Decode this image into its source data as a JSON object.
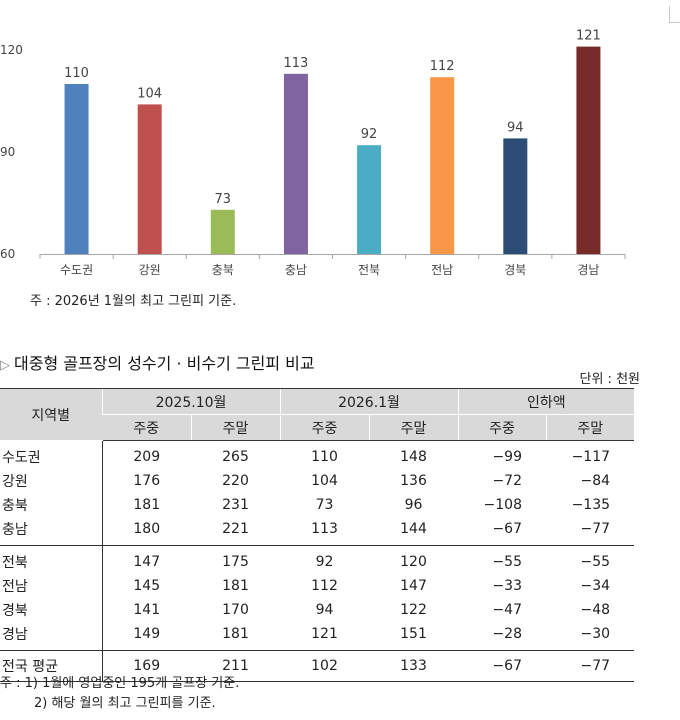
{
  "chart_data": {
    "type": "bar",
    "categories": [
      "수도권",
      "강원",
      "충북",
      "충남",
      "전북",
      "전남",
      "경북",
      "경남"
    ],
    "values": [
      110,
      104,
      73,
      113,
      92,
      112,
      94,
      121
    ],
    "colors": [
      "#4f81bd",
      "#c0504d",
      "#9bbb59",
      "#8064a2",
      "#4bacc6",
      "#f79646",
      "#2c4d75",
      "#772c2a"
    ],
    "yticks": [
      60,
      90,
      120
    ],
    "ylim": [
      60,
      120
    ],
    "title": "",
    "xlabel": "",
    "ylabel": ""
  },
  "chart_note": "주 : 2026년 1월의 최고 그린피 기준.",
  "section_title": "대중형 골프장의 성수기 · 비수기 그린피 비교",
  "unit": "단위 : 천원",
  "table": {
    "region_header": "지역별",
    "periods": [
      "2025.10월",
      "2026.1월",
      "인하액"
    ],
    "sub": [
      "주중",
      "주말",
      "주중",
      "주말",
      "주중",
      "주말"
    ],
    "rows": [
      {
        "region": "수도권",
        "vals": [
          "209",
          "265",
          "110",
          "148",
          "−99",
          "−117"
        ]
      },
      {
        "region": "강원",
        "vals": [
          "176",
          "220",
          "104",
          "136",
          "−72",
          "−84"
        ]
      },
      {
        "region": "충북",
        "vals": [
          "181",
          "231",
          "73",
          "96",
          "−108",
          "−135"
        ]
      },
      {
        "region": "충남",
        "vals": [
          "180",
          "221",
          "113",
          "144",
          "−67",
          "−77"
        ]
      },
      {
        "region": "전북",
        "vals": [
          "147",
          "175",
          "92",
          "120",
          "−55",
          "−55"
        ]
      },
      {
        "region": "전남",
        "vals": [
          "145",
          "181",
          "112",
          "147",
          "−33",
          "−34"
        ]
      },
      {
        "region": "경북",
        "vals": [
          "141",
          "170",
          "94",
          "122",
          "−47",
          "−48"
        ]
      },
      {
        "region": "경남",
        "vals": [
          "149",
          "181",
          "121",
          "151",
          "−28",
          "−30"
        ]
      }
    ],
    "average": {
      "region": "전국 평균",
      "vals": [
        "169",
        "211",
        "102",
        "133",
        "−67",
        "−77"
      ]
    }
  },
  "notes": [
    "주 : 1) 1월에 영업중인 195개 골프장 기준.",
    "2) 해당 월의 최고 그린피를 기준."
  ]
}
